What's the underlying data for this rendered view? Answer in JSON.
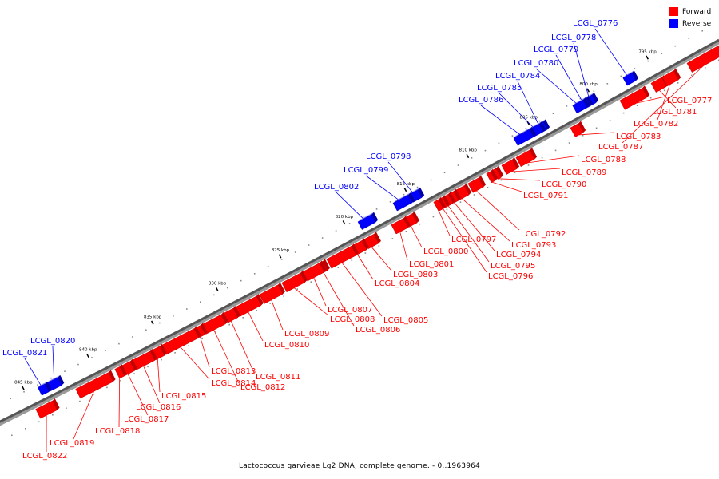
{
  "caption": "Lactococcus garvieae Lg2 DNA, complete genome. - 0..1963964",
  "legend": {
    "forward_label": "Forward",
    "reverse_label": "Reverse",
    "forward_color": "#ff0000",
    "reverse_color": "#0000ff"
  },
  "ticks": [
    "795 kbp",
    "800 kbp",
    "805 kbp",
    "810 kbp",
    "815 kbp",
    "820 kbp",
    "825 kbp",
    "830 kbp",
    "835 kbp",
    "840 kbp",
    "845 kbp"
  ],
  "reverse_genes": [
    "LCGL_0776",
    "LCGL_0778",
    "LCGL_0779",
    "LCGL_0780",
    "LCGL_0784",
    "LCGL_0785",
    "LCGL_0786",
    "LCGL_0798",
    "LCGL_0799",
    "LCGL_0802",
    "LCGL_0820",
    "LCGL_0821"
  ],
  "forward_genes": [
    "LCGL_0777",
    "LCGL_0781",
    "LCGL_0782",
    "LCGL_0783",
    "LCGL_0787",
    "LCGL_0788",
    "LCGL_0789",
    "LCGL_0790",
    "LCGL_0791",
    "LCGL_0792",
    "LCGL_0793",
    "LCGL_0794",
    "LCGL_0795",
    "LCGL_0796",
    "LCGL_0797",
    "LCGL_0800",
    "LCGL_0801",
    "LCGL_0803",
    "LCGL_0804",
    "LCGL_0805",
    "LCGL_0806",
    "LCGL_0807",
    "LCGL_0808",
    "LCGL_0809",
    "LCGL_0810",
    "LCGL_0811",
    "LCGL_0812",
    "LCGL_0813",
    "LCGL_0814",
    "LCGL_0815",
    "LCGL_0816",
    "LCGL_0817",
    "LCGL_0818",
    "LCGL_0819",
    "LCGL_0822"
  ]
}
